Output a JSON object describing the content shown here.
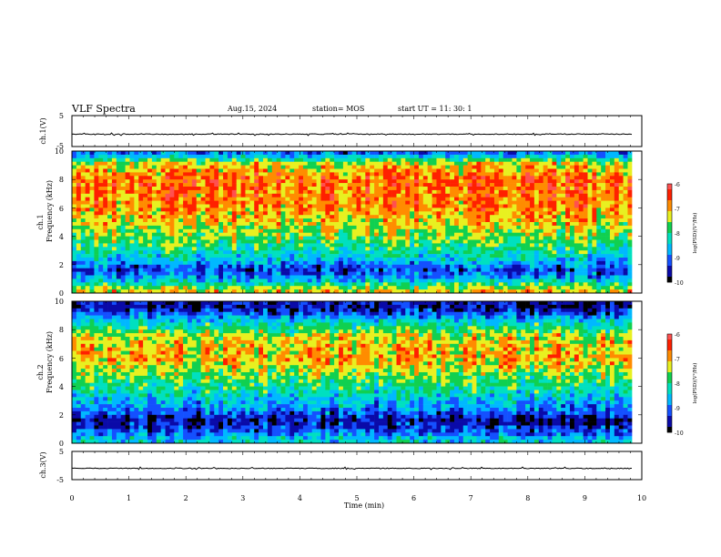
{
  "header": {
    "title": "VLF Spectra",
    "date": "Aug.15, 2024",
    "station": "station= MOS",
    "start": "start  UT =   11: 30: 1"
  },
  "colors": {
    "colormap": [
      "#000000",
      "#0a0aa8",
      "#1450ff",
      "#00b8ff",
      "#00e0c0",
      "#10d050",
      "#e8f020",
      "#ff8c00",
      "#ff2000",
      "#ff5050"
    ],
    "trace": "#000000",
    "axis": "#000000"
  },
  "chart_data": [
    {
      "type": "line",
      "ylabel": "ch.1(V)",
      "yticks": [
        "5",
        "-5"
      ],
      "ylim": [
        -5,
        5
      ],
      "description_level": 0,
      "xlim": [
        0,
        10
      ]
    },
    {
      "type": "heatmap",
      "ylabel_1": "ch.1",
      "ylabel_2": "Frequency (kHz)",
      "yticks": [
        "0",
        "2",
        "4",
        "6",
        "8",
        "10"
      ],
      "ylim": [
        0,
        10
      ],
      "xlim": [
        0,
        10
      ],
      "colorbar": {
        "label": "log(PSD)(V²/Hz)",
        "ticks": [
          "-6",
          "-7",
          "-8",
          "-9",
          "-10"
        ],
        "range": [
          -10,
          -6
        ]
      },
      "band_profile_log_psd": [
        {
          "freq_khz": 0.2,
          "level": -7.2
        },
        {
          "freq_khz": 1.0,
          "level": -8.7
        },
        {
          "freq_khz": 1.6,
          "level": -9.3
        },
        {
          "freq_khz": 2.5,
          "level": -8.4
        },
        {
          "freq_khz": 4.0,
          "level": -7.6
        },
        {
          "freq_khz": 6.0,
          "level": -6.9
        },
        {
          "freq_khz": 8.0,
          "level": -6.7
        },
        {
          "freq_khz": 9.2,
          "level": -7.4
        },
        {
          "freq_khz": 9.8,
          "level": -9.0
        }
      ]
    },
    {
      "type": "heatmap",
      "ylabel_1": "ch.2",
      "ylabel_2": "Frequency (kHz)",
      "yticks": [
        "0",
        "2",
        "4",
        "6",
        "8",
        "10"
      ],
      "ylim": [
        0,
        10
      ],
      "xlim": [
        0,
        10
      ],
      "colorbar": {
        "label": "log(PSD)(V²/Hz)",
        "ticks": [
          "-6",
          "-7",
          "-8",
          "-9",
          "-10"
        ],
        "range": [
          -10,
          -6
        ]
      },
      "band_profile_log_psd": [
        {
          "freq_khz": 0.2,
          "level": -8.4
        },
        {
          "freq_khz": 1.0,
          "level": -9.3
        },
        {
          "freq_khz": 1.6,
          "level": -9.6
        },
        {
          "freq_khz": 2.5,
          "level": -8.8
        },
        {
          "freq_khz": 4.0,
          "level": -8.0
        },
        {
          "freq_khz": 6.0,
          "level": -7.0
        },
        {
          "freq_khz": 7.5,
          "level": -7.3
        },
        {
          "freq_khz": 8.5,
          "level": -8.3
        },
        {
          "freq_khz": 9.5,
          "level": -9.6
        }
      ]
    },
    {
      "type": "line",
      "ylabel": "ch.3(V)",
      "yticks": [
        "5",
        "-5"
      ],
      "ylim": [
        -5,
        5
      ],
      "description_level": 0,
      "xlim": [
        0,
        10
      ]
    }
  ],
  "xaxis": {
    "label": "Time  (min)",
    "ticks": [
      "0",
      "1",
      "2",
      "3",
      "4",
      "5",
      "6",
      "7",
      "8",
      "9",
      "10"
    ],
    "data_end_min": 9.83
  }
}
